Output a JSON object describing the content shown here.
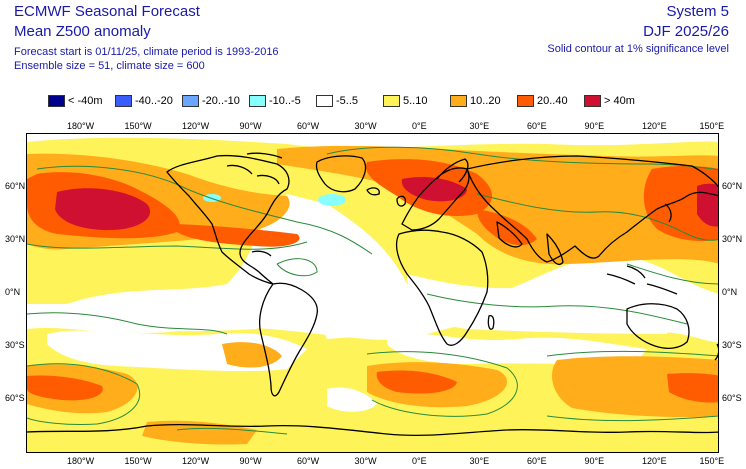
{
  "header": {
    "line1": "ECMWF Seasonal Forecast",
    "line2": "Mean Z500 anomaly",
    "line3": "Forecast start is 01/11/25, climate period is 1993-2016",
    "line4": "Ensemble size = 51, climate size = 600",
    "system": "System 5",
    "period": "DJF 2025/26",
    "significance": "Solid contour at 1% significance level"
  },
  "legend": [
    {
      "label": "< -40m",
      "color": "#00008f"
    },
    {
      "label": "-40..-20",
      "color": "#3a5cff"
    },
    {
      "label": "-20..-10",
      "color": "#6aa6ff"
    },
    {
      "label": "-10..-5",
      "color": "#88ffff"
    },
    {
      "label": "-5..5",
      "color": "#ffffff"
    },
    {
      "label": "5..10",
      "color": "#fff35a"
    },
    {
      "label": "10..20",
      "color": "#ffad1a"
    },
    {
      "label": "20..40",
      "color": "#ff5b00"
    },
    {
      "label": "> 40m",
      "color": "#d01030"
    }
  ],
  "axis": {
    "lon_top": [
      "180°W",
      "150°W",
      "120°W",
      "90°W",
      "60°W",
      "30°W",
      "0°E",
      "30°E",
      "60°E",
      "90°E",
      "120°E",
      "150°E"
    ],
    "lon_bottom": [
      "180°W",
      "150°W",
      "120°W",
      "90°W",
      "60°W",
      "30°W",
      "0°E",
      "30°E",
      "60°E",
      "90°E",
      "120°E",
      "150°E"
    ],
    "lat_left": [
      "60°N",
      "30°N",
      "0°N",
      "30°S",
      "60°S"
    ],
    "lat_right": [
      "60°N",
      "30°N",
      "0°N",
      "30°S",
      "60°S"
    ]
  },
  "colors": {
    "contour": "#2a8a3a",
    "coast": "#000000"
  }
}
